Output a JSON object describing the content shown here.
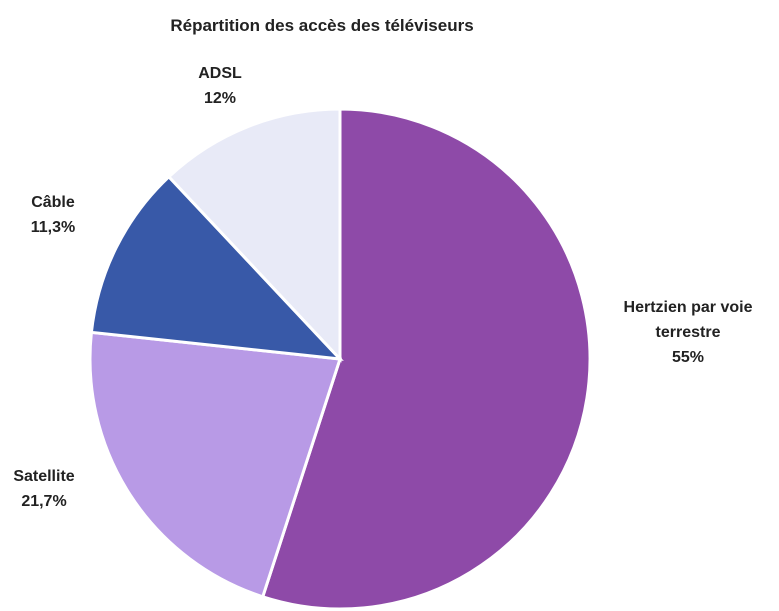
{
  "chart_data": {
    "type": "pie",
    "title": "Répartition des accès des téléviseurs",
    "slices": [
      {
        "name": "Hertzien par voie terrestre",
        "label_lines": [
          "Hertzien par voie",
          "terrestre",
          "55%"
        ],
        "value": 55,
        "value_label": "55%",
        "color": "#8e4aa8"
      },
      {
        "name": "Satellite",
        "label_lines": [
          "Satellite",
          "21,7%"
        ],
        "value": 21.7,
        "value_label": "21,7%",
        "color": "#b89ae6"
      },
      {
        "name": "Câble",
        "label_lines": [
          "Câble",
          "11,3%"
        ],
        "value": 11.3,
        "value_label": "11,3%",
        "color": "#3859a8"
      },
      {
        "name": "ADSL",
        "label_lines": [
          "ADSL",
          "12%"
        ],
        "value": 12,
        "value_label": "12%",
        "color": "#e8eaf7"
      }
    ],
    "start_angle_deg": 0,
    "direction": "clockwise",
    "legend": "none"
  }
}
